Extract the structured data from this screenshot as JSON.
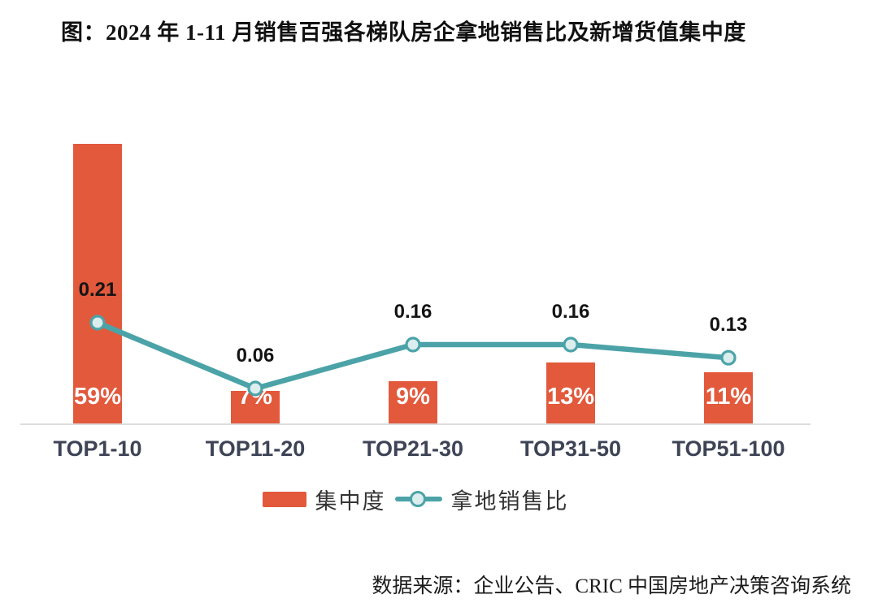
{
  "figure": {
    "title": "图：2024 年 1-11 月销售百强各梯队房企拿地销售比及新增货值集中度",
    "source": "数据来源：企业公告、CRIC 中国房地产决策咨询系统"
  },
  "chart_data": {
    "type": "bar+line",
    "categories": [
      "TOP1-10",
      "TOP11-20",
      "TOP21-30",
      "TOP31-50",
      "TOP51-100"
    ],
    "series": [
      {
        "name": "集中度",
        "type": "bar",
        "unit": "%",
        "values": [
          59,
          7,
          9,
          13,
          11
        ],
        "labels": [
          "59%",
          "7%",
          "9%",
          "13%",
          "11%"
        ],
        "color": "#e2593c",
        "label_color": "#ffffff"
      },
      {
        "name": "拿地销售比",
        "type": "line",
        "values": [
          0.21,
          0.06,
          0.16,
          0.16,
          0.13
        ],
        "labels": [
          "0.21",
          "0.06",
          "0.16",
          "0.16",
          "0.13"
        ],
        "color": "#4ba3a8",
        "marker_fill": "#dcedee",
        "label_color": "#141414"
      }
    ],
    "bar_axis_range": [
      0,
      90
    ],
    "line_axis_range": [
      0,
      0.25
    ],
    "grid": false,
    "axis_line_color": "#dcdcdc",
    "tick_label_color": "#3e4456",
    "legend_position": "bottom-center"
  }
}
